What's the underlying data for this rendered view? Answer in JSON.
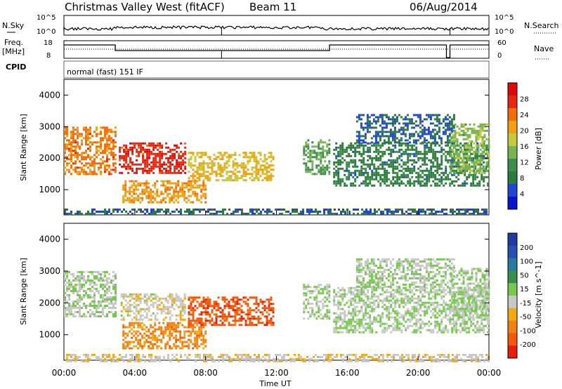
{
  "header": {
    "station": "Christmas Valley West (fitACF)",
    "beam": "Beam 11",
    "date": "06/Aug/2014"
  },
  "noise_panel": {
    "left_label": "N.Sky",
    "right_label": "N.Search",
    "left_ticks": [
      "10^5",
      "10^0"
    ],
    "right_ticks": [
      "10^5",
      "10^0"
    ]
  },
  "freq_panel": {
    "left_label_1": "Freq.",
    "left_label_2": "[MHz]",
    "right_label": "Nave",
    "left_ticks": [
      "18",
      "8"
    ],
    "right_ticks": [
      "60",
      "0"
    ]
  },
  "cpid": {
    "label": "CPID",
    "value": "normal (fast) 151 IF"
  },
  "chart_data": [
    {
      "type": "heatmap",
      "name": "power",
      "ylabel": "Slant Range [km]",
      "yticks": [
        "1000",
        "2000",
        "3000",
        "4000"
      ],
      "ylim": [
        200,
        4500
      ],
      "colorbar": {
        "label": "Power [dB]",
        "ticks": [
          "4",
          "8",
          "12",
          "16",
          "20",
          "24",
          "28"
        ],
        "range": [
          0,
          30
        ],
        "colors": [
          "#0a14c8",
          "#1e46d2",
          "#2c7a3c",
          "#3c8c50",
          "#78b450",
          "#c8c83c",
          "#f0a010",
          "#f06e0a",
          "#e62810",
          "#dc0a0a"
        ]
      },
      "echo_regions": [
        {
          "t0": 0.0,
          "t1": 2.9,
          "r0": 1500,
          "r1": 3000,
          "value": 22
        },
        {
          "t0": 3.1,
          "t1": 6.8,
          "r0": 1500,
          "r1": 2500,
          "value": 26
        },
        {
          "t0": 3.3,
          "t1": 8.0,
          "r0": 600,
          "r1": 1300,
          "value": 20
        },
        {
          "t0": 7.0,
          "t1": 11.8,
          "r0": 1300,
          "r1": 2200,
          "value": 18
        },
        {
          "t0": 13.5,
          "t1": 15.0,
          "r0": 1500,
          "r1": 2600,
          "value": 12
        },
        {
          "t0": 15.2,
          "t1": 24.0,
          "r0": 1100,
          "r1": 2500,
          "value": 8
        },
        {
          "t0": 16.5,
          "t1": 22.0,
          "r0": 2500,
          "r1": 3400,
          "value": 6
        },
        {
          "t0": 21.8,
          "t1": 24.0,
          "r0": 1500,
          "r1": 3100,
          "value": 14
        },
        {
          "t0": 0.0,
          "t1": 24.0,
          "r0": 200,
          "r1": 400,
          "value": 6
        }
      ]
    },
    {
      "type": "heatmap",
      "name": "velocity",
      "ylabel": "Slant Range [km]",
      "yticks": [
        "1000",
        "2000",
        "3000",
        "4000"
      ],
      "ylim": [
        200,
        4500
      ],
      "colorbar": {
        "label": "Velocity [m s^-1]",
        "ticks": [
          "200",
          "100",
          "50",
          "15",
          "-15",
          "-50",
          "-100",
          "-200"
        ],
        "range": [
          -250,
          250
        ],
        "colors": [
          "#1e3ca0",
          "#2850b4",
          "#2878a0",
          "#3c8c50",
          "#78c850",
          "#c8c8c8",
          "#f0aa14",
          "#f08214",
          "#f05a0a",
          "#e61e0a"
        ]
      },
      "echo_regions": [
        {
          "t0": 0.0,
          "t1": 2.9,
          "r0": 1600,
          "r1": 3000,
          "value": 0
        },
        {
          "t0": 3.2,
          "t1": 6.8,
          "r0": 1500,
          "r1": 2300,
          "value": -30
        },
        {
          "t0": 3.3,
          "t1": 8.0,
          "r0": 600,
          "r1": 1400,
          "value": -120
        },
        {
          "t0": 7.0,
          "t1": 11.8,
          "r0": 1300,
          "r1": 2200,
          "value": -180
        },
        {
          "t0": 13.5,
          "t1": 15.0,
          "r0": 1500,
          "r1": 2600,
          "value": 0
        },
        {
          "t0": 15.2,
          "t1": 24.0,
          "r0": 1100,
          "r1": 2500,
          "value": 0
        },
        {
          "t0": 16.5,
          "t1": 22.0,
          "r0": 2500,
          "r1": 3400,
          "value": 0
        },
        {
          "t0": 21.8,
          "t1": 24.0,
          "r0": 1500,
          "r1": 3100,
          "value": 0
        },
        {
          "t0": 0.0,
          "t1": 24.0,
          "r0": 200,
          "r1": 400,
          "value": -40
        }
      ]
    }
  ],
  "x_axis": {
    "label": "Time UT",
    "ticks": [
      "00:00",
      "04:00",
      "08:00",
      "12:00",
      "16:00",
      "20:00",
      "00:00"
    ],
    "xlim": [
      0,
      24
    ]
  }
}
